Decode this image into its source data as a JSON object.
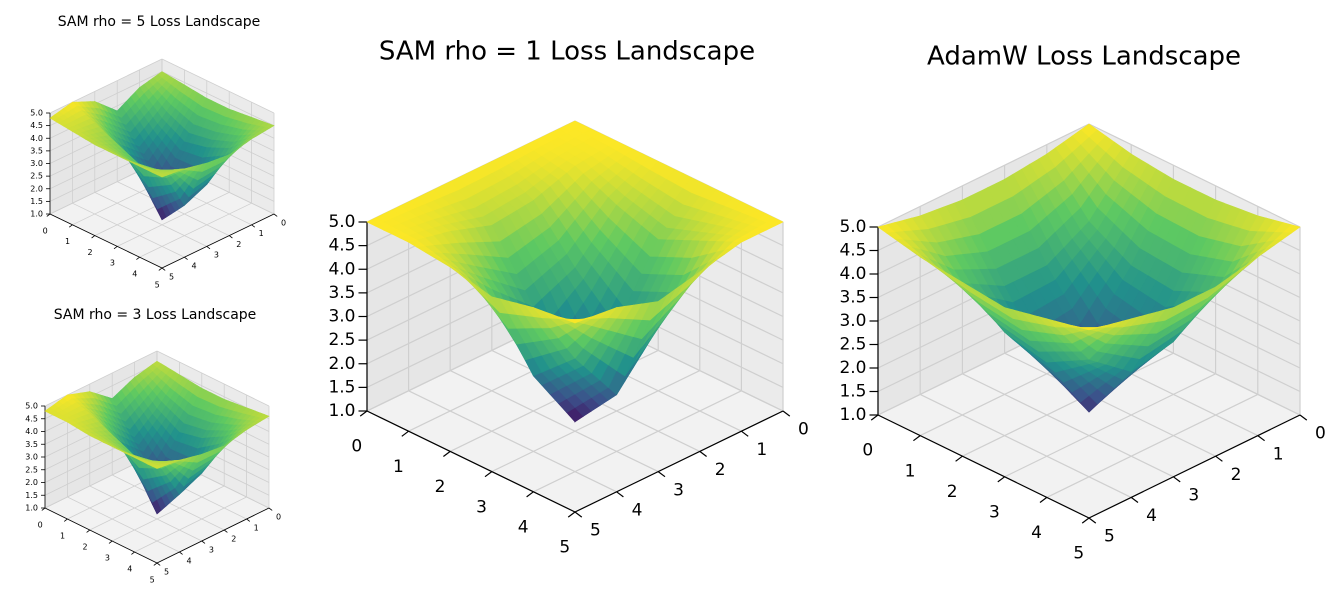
{
  "chart_data": [
    {
      "type": "surface",
      "title": "SAM rho = 5 Loss Landscape",
      "colormap": "viridis",
      "x": [
        0,
        1,
        2,
        3,
        4,
        5
      ],
      "y": [
        0,
        1,
        2,
        3,
        4,
        5
      ],
      "z": [
        [
          4.5,
          4.3,
          3.8,
          4.6,
          5.0,
          4.8
        ],
        [
          4.4,
          3.5,
          2.8,
          3.6,
          4.6,
          4.7
        ],
        [
          4.3,
          3.0,
          1.8,
          2.5,
          4.2,
          4.6
        ],
        [
          4.3,
          3.2,
          1.6,
          1.2,
          3.8,
          4.6
        ],
        [
          4.4,
          3.6,
          2.6,
          2.2,
          4.0,
          4.6
        ],
        [
          4.5,
          4.4,
          4.2,
          4.3,
          4.5,
          4.6
        ]
      ],
      "xlim": [
        0,
        5
      ],
      "ylim": [
        0,
        5
      ],
      "zlim": [
        1,
        5
      ],
      "xticks": [
        0,
        1,
        2,
        3,
        4,
        5
      ],
      "yticks": [
        0,
        1,
        2,
        3,
        4,
        5
      ],
      "zticks": [
        {
          "value": 1,
          "label": "1.0"
        },
        1.5,
        {
          "value": 2,
          "label": "2.0"
        },
        2.5,
        {
          "value": 3,
          "label": "3.0"
        },
        3.5,
        {
          "value": 4,
          "label": "4.0"
        },
        4.5,
        {
          "value": 5,
          "label": "5.0"
        }
      ],
      "grid": true
    },
    {
      "type": "surface",
      "title": "SAM rho = 3 Loss Landscape",
      "colormap": "viridis",
      "x": [
        0,
        1,
        2,
        3,
        4,
        5
      ],
      "y": [
        0,
        1,
        2,
        3,
        4,
        5
      ],
      "z": [
        [
          4.6,
          4.4,
          4.0,
          4.7,
          5.0,
          4.8
        ],
        [
          4.5,
          3.6,
          2.9,
          3.8,
          4.7,
          4.8
        ],
        [
          4.4,
          3.1,
          1.9,
          2.6,
          4.3,
          4.7
        ],
        [
          4.4,
          3.3,
          1.7,
          1.2,
          3.9,
          4.7
        ],
        [
          4.5,
          3.8,
          2.8,
          2.4,
          4.1,
          4.7
        ],
        [
          4.6,
          4.5,
          4.3,
          4.4,
          4.6,
          4.7
        ]
      ],
      "xlim": [
        0,
        5
      ],
      "ylim": [
        0,
        5
      ],
      "zlim": [
        1,
        5
      ],
      "xticks": [
        0,
        1,
        2,
        3,
        4,
        5
      ],
      "yticks": [
        0,
        1,
        2,
        3,
        4,
        5
      ],
      "zticks": [
        {
          "value": 1,
          "label": "1.0"
        },
        1.5,
        {
          "value": 2,
          "label": "2.0"
        },
        2.5,
        {
          "value": 3,
          "label": "3.0"
        },
        3.5,
        {
          "value": 4,
          "label": "4.0"
        },
        4.5,
        {
          "value": 5,
          "label": "5.0"
        }
      ],
      "grid": true
    },
    {
      "type": "surface",
      "title": "SAM rho = 1 Loss Landscape",
      "colormap": "viridis",
      "x": [
        0,
        1,
        2,
        3,
        4,
        5
      ],
      "y": [
        0,
        1,
        2,
        3,
        4,
        5
      ],
      "z": [
        [
          5.0,
          5.0,
          5.0,
          5.0,
          5.0,
          5.0
        ],
        [
          5.0,
          4.9,
          4.6,
          4.5,
          4.8,
          5.0
        ],
        [
          5.0,
          4.5,
          3.6,
          3.2,
          4.0,
          4.9
        ],
        [
          5.0,
          4.2,
          2.8,
          1.2,
          2.6,
          4.7
        ],
        [
          5.0,
          4.6,
          3.2,
          2.2,
          3.4,
          4.9
        ],
        [
          5.0,
          5.0,
          4.8,
          4.6,
          4.9,
          5.0
        ]
      ],
      "xlim": [
        0,
        5
      ],
      "ylim": [
        0,
        5
      ],
      "zlim": [
        1,
        5
      ],
      "xticks": [
        0,
        1,
        2,
        3,
        4,
        5
      ],
      "yticks": [
        0,
        1,
        2,
        3,
        4,
        5
      ],
      "zticks": [
        {
          "value": 1,
          "label": "1.0"
        },
        1.5,
        {
          "value": 2,
          "label": "2.0"
        },
        2.5,
        {
          "value": 3,
          "label": "3.0"
        },
        3.5,
        {
          "value": 4,
          "label": "4.0"
        },
        4.5,
        {
          "value": 5,
          "label": "5.0"
        }
      ],
      "grid": true
    },
    {
      "type": "surface",
      "title": "AdamW Loss Landscape",
      "colormap": "viridis",
      "x": [
        0,
        1,
        2,
        3,
        4,
        5
      ],
      "y": [
        0,
        1,
        2,
        3,
        4,
        5
      ],
      "z": [
        [
          5.0,
          4.8,
          4.7,
          4.7,
          4.8,
          5.0
        ],
        [
          4.8,
          3.8,
          3.3,
          3.3,
          3.8,
          4.8
        ],
        [
          4.7,
          3.3,
          2.2,
          2.0,
          3.2,
          4.7
        ],
        [
          4.7,
          3.2,
          1.9,
          1.5,
          3.0,
          4.6
        ],
        [
          4.8,
          3.6,
          3.0,
          2.8,
          3.5,
          4.8
        ],
        [
          5.0,
          4.8,
          4.6,
          4.6,
          4.8,
          5.0
        ]
      ],
      "xlim": [
        0,
        5
      ],
      "ylim": [
        0,
        5
      ],
      "zlim": [
        1,
        5
      ],
      "xticks": [
        0,
        1,
        2,
        3,
        4,
        5
      ],
      "yticks": [
        0,
        1,
        2,
        3,
        4,
        5
      ],
      "zticks": [
        {
          "value": 1,
          "label": "1.0"
        },
        1.5,
        {
          "value": 2,
          "label": "2.0"
        },
        2.5,
        {
          "value": 3,
          "label": "3.0"
        },
        3.5,
        {
          "value": 4,
          "label": "4.0"
        },
        4.5,
        {
          "value": 5,
          "label": "5.0"
        }
      ],
      "grid": true
    }
  ]
}
